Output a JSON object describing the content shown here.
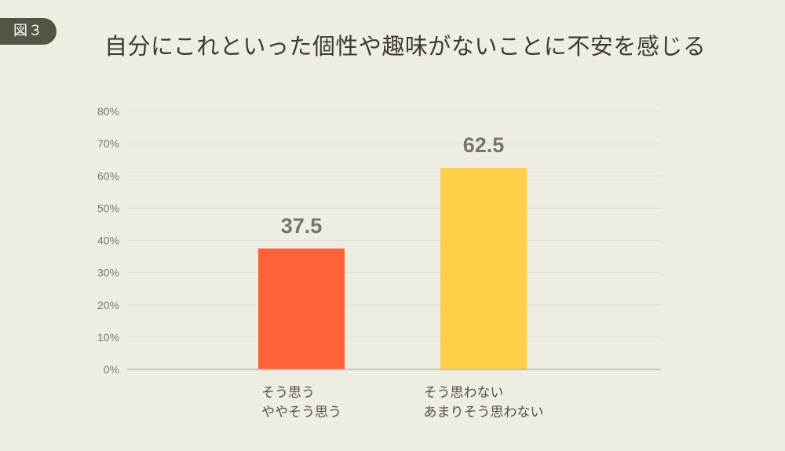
{
  "figure_badge": "図３",
  "title": "自分にこれといった個性や趣味がないことに不安を感じる",
  "colors": {
    "background": "#efece2",
    "badge": "#555246",
    "grid": "#dedbd0",
    "axis": "#b9b6ab",
    "bar_agree": "#ff6238",
    "bar_disagree": "#fed04a"
  },
  "chart_data": {
    "type": "bar",
    "title": "自分にこれといった個性や趣味がないことに不安を感じる",
    "categories": [
      [
        "そう思う",
        "ややそう思う"
      ],
      [
        "そう思わない",
        "あまりそう思わない"
      ]
    ],
    "values": [
      37.5,
      62.5
    ],
    "data_labels": [
      "37.5",
      "62.5"
    ],
    "ylim": [
      0,
      80
    ],
    "yticks": [
      0,
      10,
      20,
      30,
      40,
      50,
      60,
      70,
      80
    ],
    "ytick_labels": [
      "0%",
      "10%",
      "20%",
      "30%",
      "40%",
      "50%",
      "60%",
      "70%",
      "80%"
    ],
    "grid": true,
    "legend": "none",
    "xlabel": "",
    "ylabel": ""
  }
}
